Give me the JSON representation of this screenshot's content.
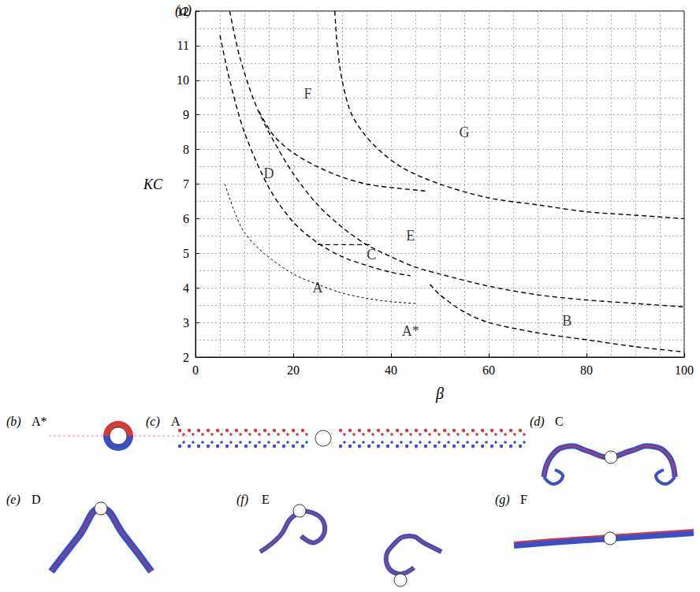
{
  "chart_data": {
    "type": "line",
    "panel_label": "(a)",
    "x_label": "β",
    "y_label": "KC",
    "xlim": [
      0,
      100
    ],
    "xticks": [
      0,
      20,
      40,
      60,
      80,
      100
    ],
    "ylim": [
      2,
      12
    ],
    "yticks": [
      2,
      3,
      4,
      5,
      6,
      7,
      8,
      9,
      10,
      11,
      12
    ],
    "grid": true,
    "curves": [
      {
        "color": "#000000",
        "line_style": "dotted",
        "x": [
          6,
          8,
          10,
          14,
          20,
          25,
          30,
          35,
          40,
          45
        ],
        "y": [
          7,
          6.2,
          5.6,
          5.0,
          4.4,
          4.1,
          3.85,
          3.7,
          3.6,
          3.55
        ]
      },
      {
        "color": "#000000",
        "line_style": "dashed",
        "x": [
          5,
          7,
          10,
          15,
          20,
          25,
          30,
          35,
          40,
          44
        ],
        "y": [
          11.3,
          10.0,
          8.5,
          6.9,
          5.9,
          5.3,
          4.9,
          4.65,
          4.45,
          4.35
        ]
      },
      {
        "color": "#000000",
        "line_style": "dashed",
        "x": [
          7,
          9,
          12,
          15,
          20,
          25,
          30,
          35,
          40,
          45,
          50,
          60,
          70,
          80,
          90,
          100
        ],
        "y": [
          12,
          10.7,
          9.4,
          8.5,
          7.3,
          6.4,
          5.75,
          5.25,
          4.9,
          4.6,
          4.4,
          4.05,
          3.8,
          3.65,
          3.55,
          3.45
        ]
      },
      {
        "color": "#000000",
        "line_style": "dashed",
        "x": [
          25,
          36
        ],
        "y": [
          5.25,
          5.25
        ]
      },
      {
        "color": "#000000",
        "line_style": "dashed",
        "x": [
          13,
          16,
          20,
          25,
          30,
          35,
          40,
          47
        ],
        "y": [
          9.1,
          8.4,
          7.9,
          7.5,
          7.2,
          7.0,
          6.9,
          6.8
        ]
      },
      {
        "color": "#000000",
        "line_style": "dashed",
        "x": [
          28.5,
          29,
          30,
          32,
          36,
          42,
          50,
          60,
          70,
          80,
          90,
          100
        ],
        "y": [
          12,
          11,
          10,
          9,
          8.2,
          7.5,
          7.0,
          6.6,
          6.4,
          6.2,
          6.1,
          6.0
        ]
      },
      {
        "color": "#000000",
        "line_style": "dashed",
        "x": [
          48,
          50,
          55,
          60,
          70,
          80,
          90,
          100
        ],
        "y": [
          4.1,
          3.8,
          3.3,
          3.0,
          2.7,
          2.5,
          2.3,
          2.15
        ]
      }
    ],
    "annotations": [
      {
        "text": "F",
        "x": 23,
        "y": 9.6
      },
      {
        "text": "G",
        "x": 55,
        "y": 8.5
      },
      {
        "text": "D",
        "x": 15,
        "y": 7.3
      },
      {
        "text": "E",
        "x": 44,
        "y": 5.5
      },
      {
        "text": "C",
        "x": 36,
        "y": 4.95
      },
      {
        "text": "A",
        "x": 25,
        "y": 4.0
      },
      {
        "text": "B",
        "x": 76,
        "y": 3.05
      },
      {
        "text": "A*",
        "x": 44,
        "y": 2.75
      }
    ]
  },
  "panels": [
    {
      "label": "(b)",
      "mode": "A*"
    },
    {
      "label": "(c)",
      "mode": "A"
    },
    {
      "label": "(d)",
      "mode": "C"
    },
    {
      "label": "(e)",
      "mode": "D"
    },
    {
      "label": "(f)",
      "mode": "E"
    },
    {
      "label": "(g)",
      "mode": "F"
    }
  ]
}
